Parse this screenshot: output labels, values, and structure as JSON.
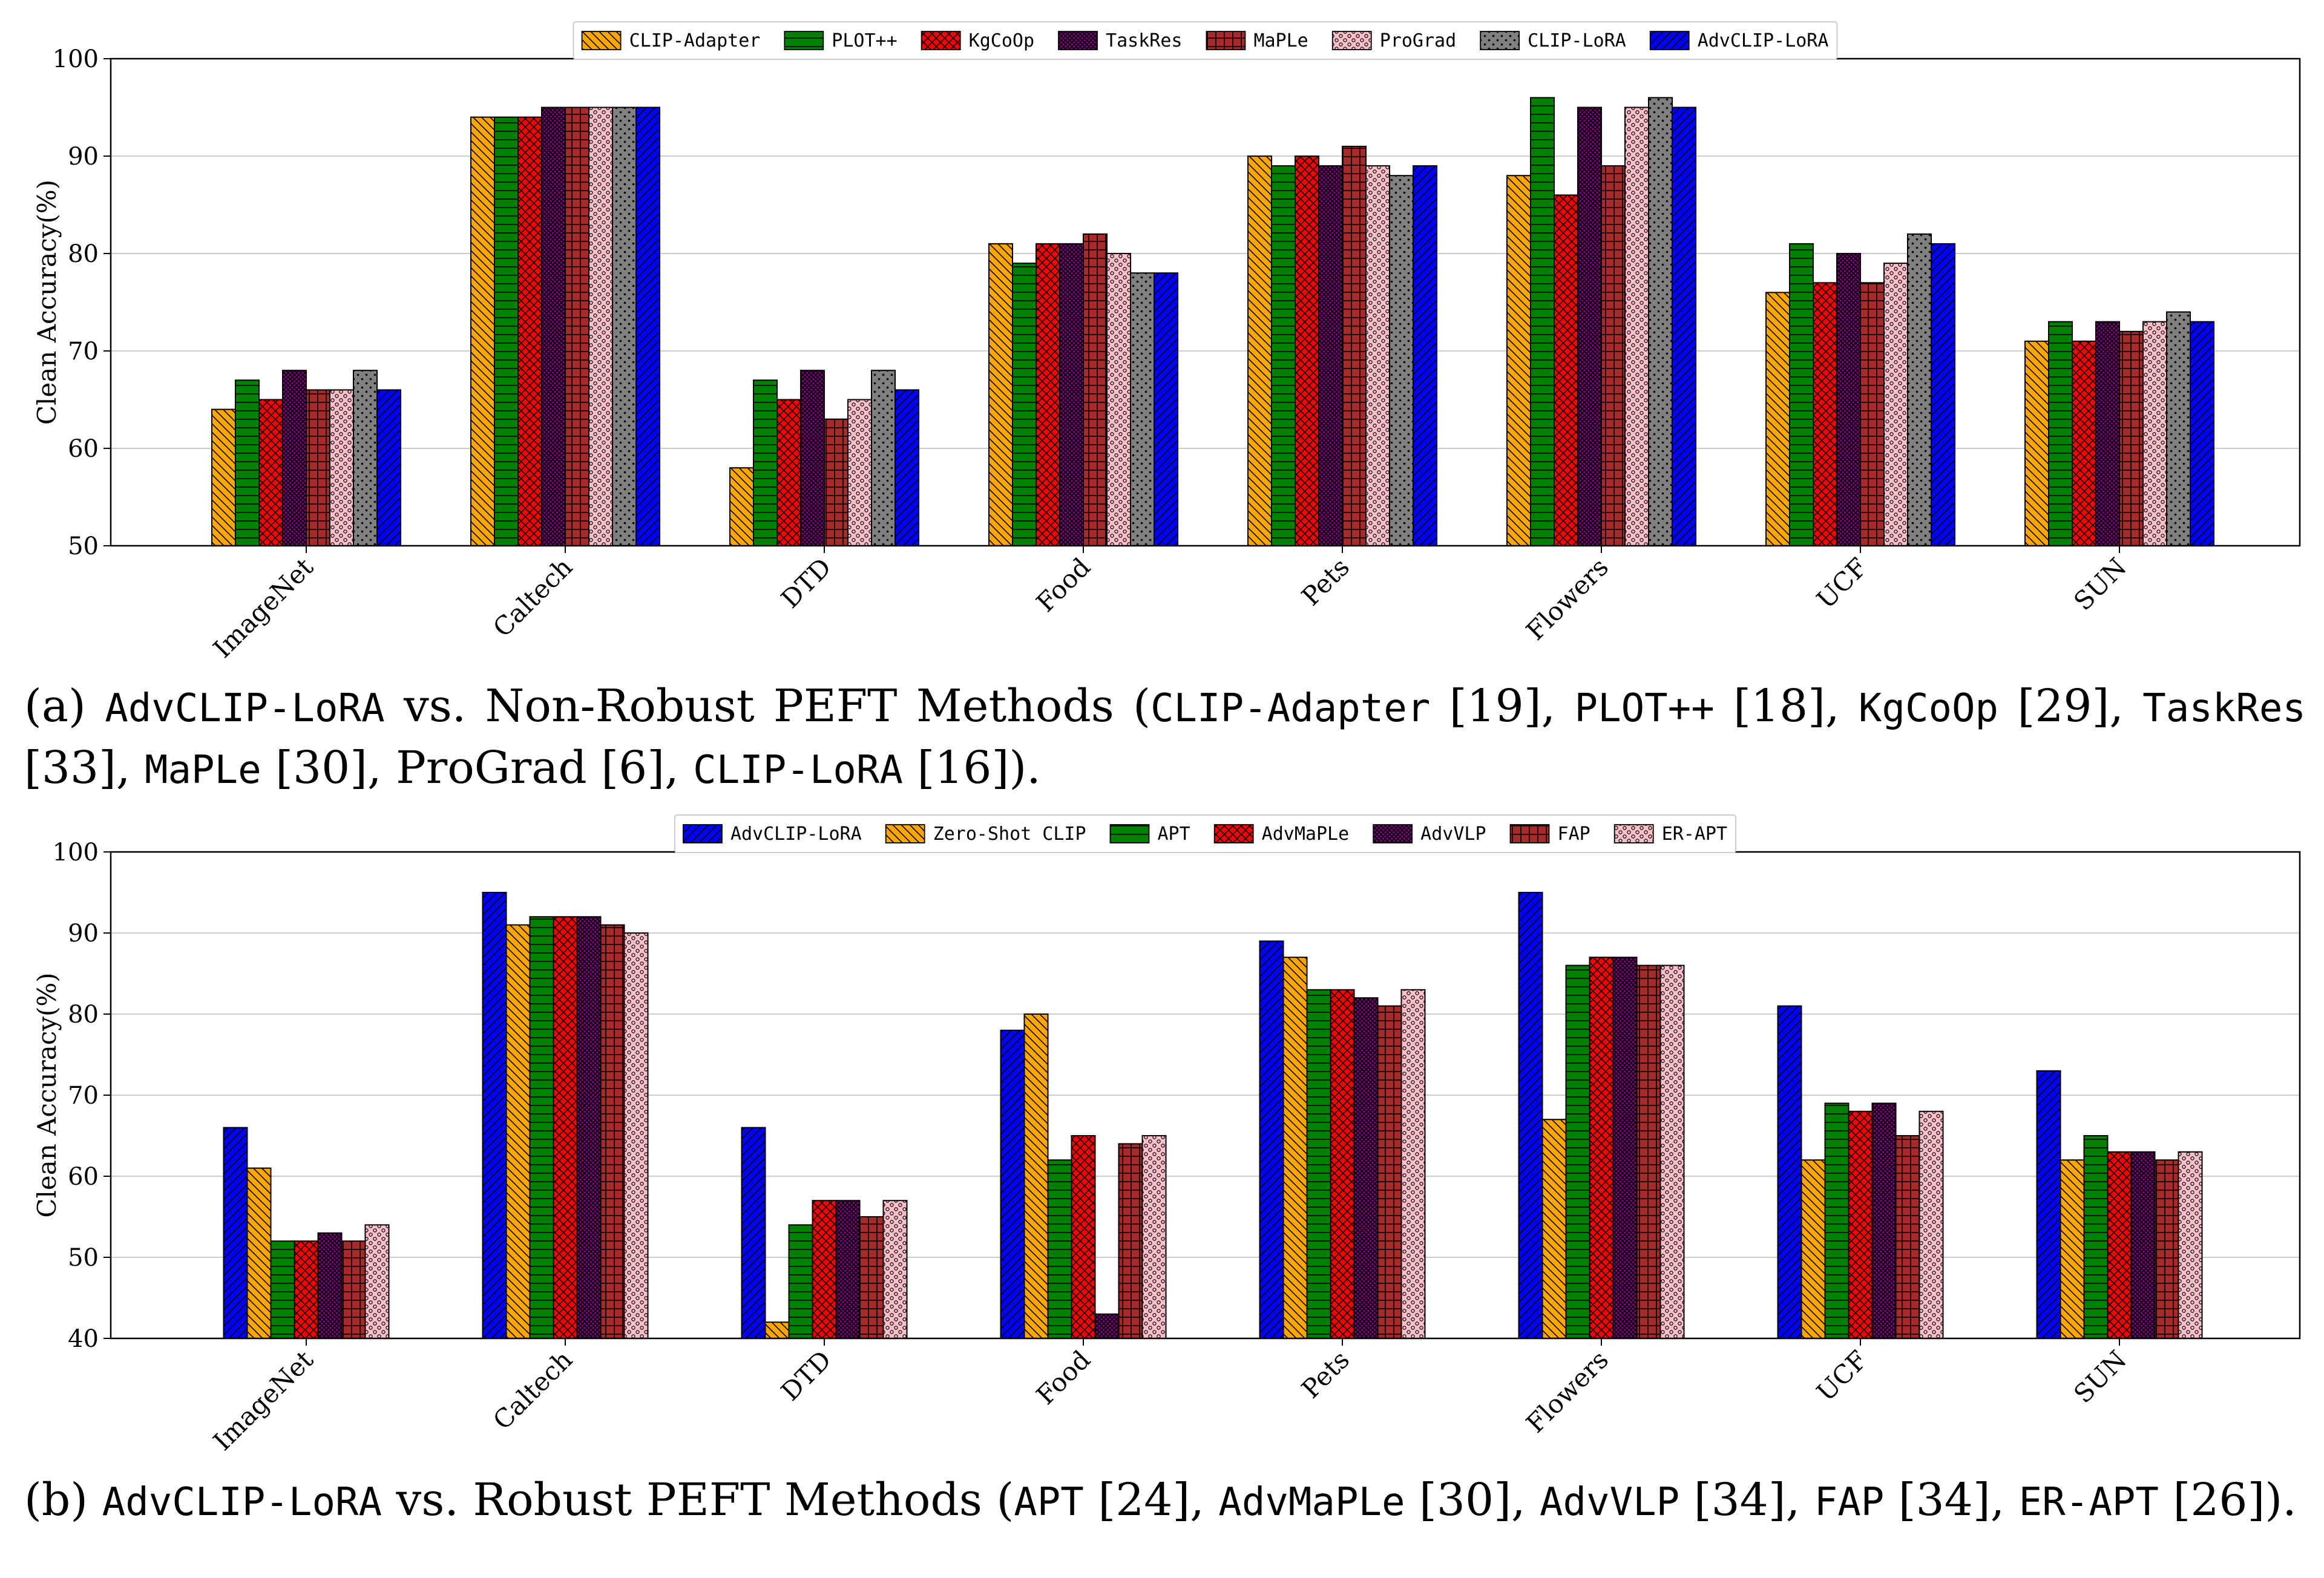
{
  "chart_data": [
    {
      "type": "bar",
      "id": "chart_a",
      "ylabel": "Clean Accuracy(%)",
      "xlabel": "",
      "ylim": [
        50,
        100
      ],
      "yticks": [
        50,
        60,
        70,
        80,
        90,
        100
      ],
      "grid": "horizontal",
      "legend_position": "top-center",
      "categories": [
        "ImageNet",
        "Caltech",
        "DTD",
        "Food",
        "Pets",
        "Flowers",
        "UCF",
        "SUN"
      ],
      "series": [
        {
          "name": "CLIP-Adapter",
          "color": "#FFA500",
          "pattern": "diag-back",
          "values": [
            64,
            94,
            58,
            81,
            90,
            88,
            76,
            71
          ]
        },
        {
          "name": "PLOT++",
          "color": "#008000",
          "pattern": "hlines",
          "values": [
            67,
            94,
            67,
            79,
            89,
            96,
            81,
            73
          ]
        },
        {
          "name": "KgCoOp",
          "color": "#FF0000",
          "pattern": "crosshatch",
          "values": [
            65,
            94,
            65,
            81,
            90,
            86,
            77,
            71
          ]
        },
        {
          "name": "TaskRes",
          "color": "#800080",
          "pattern": "crosshatch-dense",
          "values": [
            68,
            95,
            68,
            81,
            89,
            95,
            80,
            73
          ]
        },
        {
          "name": "MaPLe",
          "color": "#A52A2A",
          "pattern": "grid",
          "values": [
            66,
            95,
            63,
            82,
            91,
            89,
            77,
            72
          ]
        },
        {
          "name": "ProGrad",
          "color": "#FFC0CB",
          "pattern": "dots",
          "values": [
            66,
            95,
            65,
            80,
            89,
            95,
            79,
            73
          ]
        },
        {
          "name": "CLIP-LoRA",
          "color": "#808080",
          "pattern": "dots-sparse",
          "values": [
            68,
            95,
            68,
            78,
            88,
            96,
            82,
            74
          ]
        },
        {
          "name": "AdvCLIP-LoRA",
          "color": "#0000FF",
          "pattern": "diag-fwd",
          "values": [
            66,
            95,
            66,
            78,
            89,
            95,
            81,
            73
          ]
        }
      ]
    },
    {
      "type": "bar",
      "id": "chart_b",
      "ylabel": "Clean Accuracy(%)",
      "xlabel": "",
      "ylim": [
        40,
        100
      ],
      "yticks": [
        40,
        50,
        60,
        70,
        80,
        90,
        100
      ],
      "grid": "horizontal",
      "legend_position": "top-center",
      "categories": [
        "ImageNet",
        "Caltech",
        "DTD",
        "Food",
        "Pets",
        "Flowers",
        "UCF",
        "SUN"
      ],
      "series": [
        {
          "name": "AdvCLIP-LoRA",
          "color": "#0000FF",
          "pattern": "diag-fwd",
          "values": [
            66,
            95,
            66,
            78,
            89,
            95,
            81,
            73
          ]
        },
        {
          "name": "Zero-Shot CLIP",
          "color": "#FFA500",
          "pattern": "diag-back",
          "values": [
            61,
            91,
            42,
            80,
            87,
            67,
            62,
            62
          ]
        },
        {
          "name": "APT",
          "color": "#008000",
          "pattern": "hlines",
          "values": [
            52,
            92,
            54,
            62,
            83,
            86,
            69,
            65
          ]
        },
        {
          "name": "AdvMaPLe",
          "color": "#FF0000",
          "pattern": "crosshatch",
          "values": [
            52,
            92,
            57,
            65,
            83,
            87,
            68,
            63
          ]
        },
        {
          "name": "AdvVLP",
          "color": "#800080",
          "pattern": "crosshatch-dense",
          "values": [
            53,
            92,
            57,
            43,
            82,
            87,
            69,
            63
          ]
        },
        {
          "name": "FAP",
          "color": "#A52A2A",
          "pattern": "grid",
          "values": [
            52,
            91,
            55,
            64,
            81,
            86,
            65,
            62
          ]
        },
        {
          "name": "ER-APT",
          "color": "#FFC0CB",
          "pattern": "dots",
          "values": [
            54,
            90,
            57,
            65,
            83,
            86,
            68,
            63
          ]
        }
      ]
    }
  ],
  "captions": {
    "a": {
      "label": "(a)",
      "method": "AdvCLIP-LoRA",
      "text1": " vs.  Non-Robust PEFT Methods (",
      "r1": "CLIP-Adapter",
      "c1": " [19], ",
      "r2": "PLOT++",
      "c2": " [18], ",
      "r3": "KgCoOp",
      "c3": " [29], ",
      "r4": "TaskRes",
      "c4": " [33], ",
      "r5": "MaPLe",
      "c5": " [30], ProGrad [6], ",
      "r6": "CLIP-LoRA",
      "c6": " [16])."
    },
    "b": {
      "label": "(b)",
      "method": "AdvCLIP-LoRA",
      "text1": " vs. Robust PEFT Methods (",
      "r1": "APT",
      "c1": " [24], ",
      "r2": "AdvMaPLe",
      "c2": " [30], ",
      "r3": "AdvVLP",
      "c3": " [34], ",
      "r4": "FAP",
      "c4": " [34], ",
      "r5": "ER-APT",
      "c5": " [26])."
    }
  }
}
